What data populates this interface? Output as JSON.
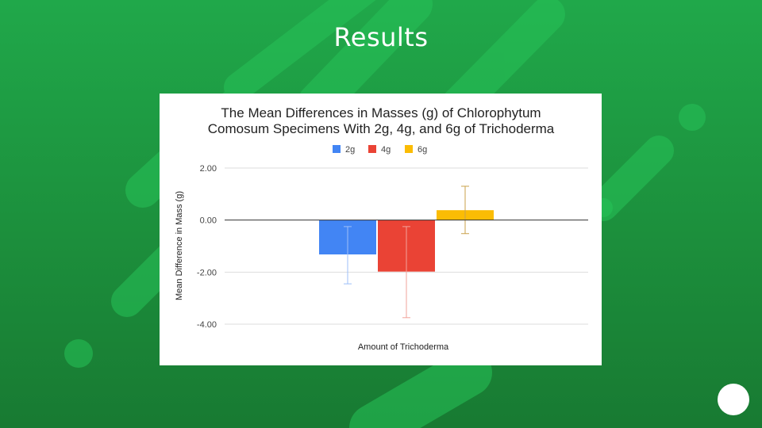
{
  "slide": {
    "title": "Results",
    "colors": {
      "background": "#1f9a42",
      "highlight": "#27c258"
    }
  },
  "chart_data": {
    "type": "bar",
    "title_lines": [
      "The Mean Differences in Masses (g) of Chlorophytum",
      "Comosum Specimens With 2g, 4g, and 6g of Trichoderma"
    ],
    "xlabel": "Amount of Trichoderma",
    "ylabel": "Mean Difference in Mass (g)",
    "ylim": [
      -4,
      2
    ],
    "yticks": [
      2,
      0,
      -2,
      -4
    ],
    "ytick_labels": [
      "2.00",
      "0.00",
      "-2.00",
      "-4.00"
    ],
    "legend_position": "top-center",
    "grid": true,
    "series": [
      {
        "name": "2g",
        "value": -1.32,
        "error_low": -2.45,
        "error_high": -0.25,
        "color": "#4285f4"
      },
      {
        "name": "4g",
        "value": -1.98,
        "error_low": -3.75,
        "error_high": -0.25,
        "color": "#ea4335"
      },
      {
        "name": "6g",
        "value": 0.38,
        "error_low": -0.52,
        "error_high": 1.3,
        "color": "#fbbc04"
      }
    ]
  }
}
